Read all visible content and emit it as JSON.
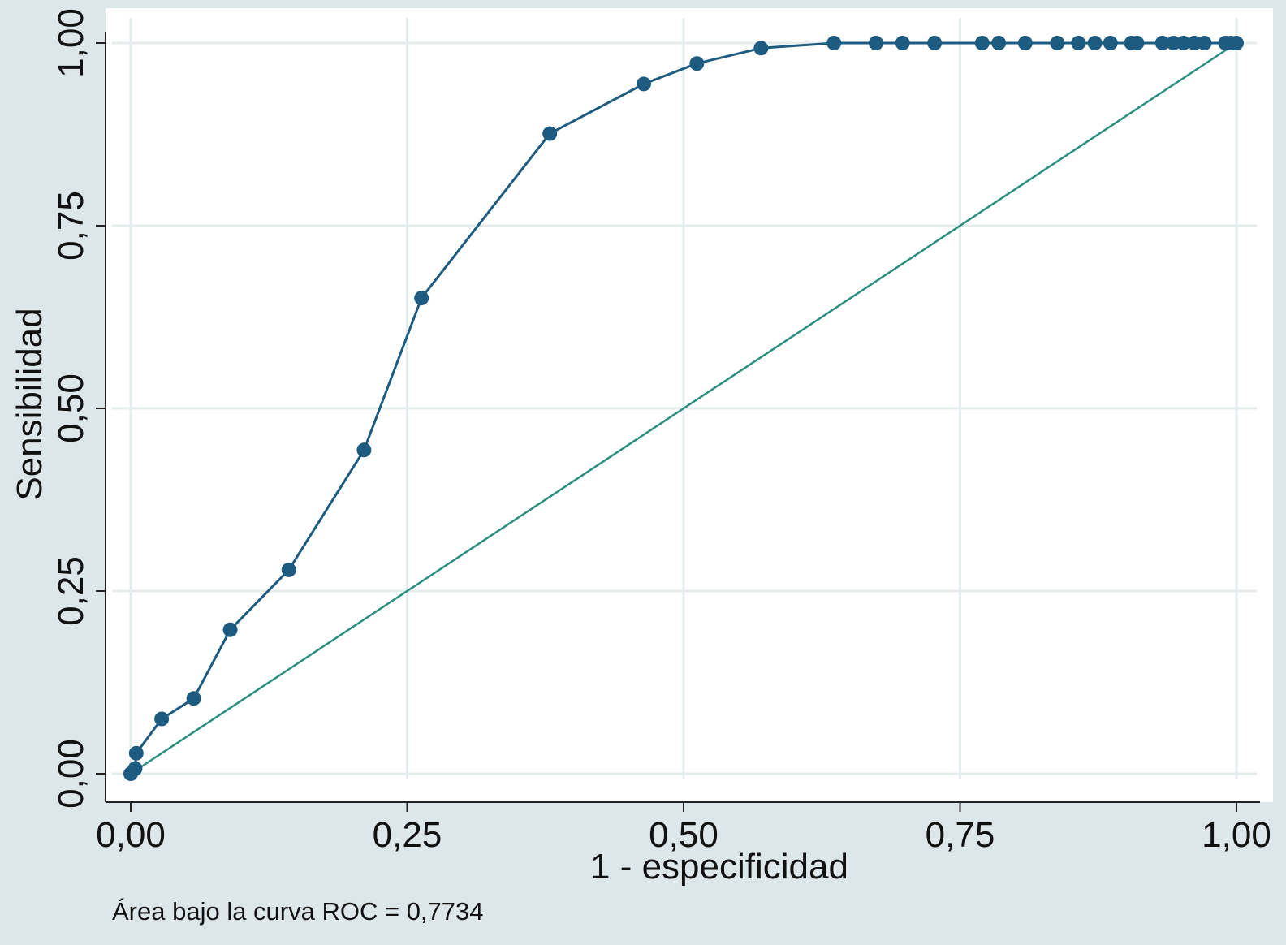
{
  "chart_data": {
    "type": "line",
    "xlabel": "1 - especificidad",
    "ylabel": "Sensibilidad",
    "xlim": [
      0,
      1
    ],
    "ylim": [
      0,
      1
    ],
    "x_ticks": [
      0,
      0.25,
      0.5,
      0.75,
      1
    ],
    "y_ticks": [
      0,
      0.25,
      0.5,
      0.75,
      1
    ],
    "x_tick_labels": [
      "0,00",
      "0,25",
      "0,50",
      "0,75",
      "1,00"
    ],
    "y_tick_labels": [
      "0,00",
      "0,25",
      "0,50",
      "0,75",
      "1,00"
    ],
    "grid": true,
    "annotation": "Área bajo la curva ROC = 0,7734",
    "series": [
      {
        "color": "#1d5c80",
        "markers": true,
        "x": [
          0,
          0.004,
          0.005,
          0.028,
          0.057,
          0.09,
          0.143,
          0.211,
          0.263,
          0.379,
          0.464,
          0.512,
          0.57,
          0.636,
          0.674,
          0.698,
          0.727,
          0.77,
          0.785,
          0.809,
          0.838,
          0.857,
          0.872,
          0.886,
          0.905,
          0.91,
          0.933,
          0.943,
          0.952,
          0.962,
          0.971,
          0.99,
          0.995,
          1.0
        ],
        "y": [
          0,
          0.007,
          0.028,
          0.075,
          0.103,
          0.197,
          0.279,
          0.443,
          0.651,
          0.876,
          0.944,
          0.972,
          0.993,
          1,
          1,
          1,
          1,
          1,
          1,
          1,
          1,
          1,
          1,
          1,
          1,
          1,
          1,
          1,
          1,
          1,
          1,
          1,
          1,
          1
        ]
      },
      {
        "color": "#2a8f7e",
        "markers": false,
        "x": [
          0,
          1
        ],
        "y": [
          0,
          1
        ]
      }
    ]
  }
}
